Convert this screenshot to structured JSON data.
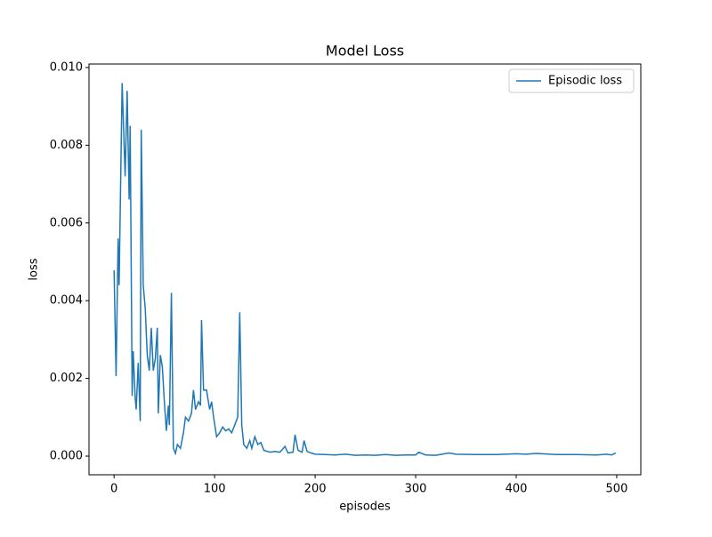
{
  "chart_data": {
    "type": "line",
    "title": "Model Loss",
    "x_label": "episodes",
    "y_label": "loss",
    "x": [
      0,
      2,
      4,
      5,
      8,
      11,
      13,
      15,
      16,
      18,
      19,
      21,
      22,
      24,
      26,
      27,
      29,
      31,
      33,
      35,
      37,
      39,
      41,
      43,
      44,
      46,
      48,
      50,
      52,
      54,
      55,
      57,
      59,
      61,
      63,
      66,
      69,
      71,
      74,
      77,
      79,
      81,
      84,
      86,
      87,
      89,
      92,
      95,
      97,
      99,
      102,
      105,
      108,
      111,
      114,
      117,
      120,
      123,
      125,
      127,
      129,
      132,
      135,
      137,
      140,
      143,
      146,
      149,
      155,
      160,
      165,
      170,
      173,
      178,
      180,
      183,
      187,
      189,
      192,
      196,
      200,
      210,
      220,
      230,
      240,
      250,
      260,
      270,
      280,
      290,
      300,
      303,
      310,
      320,
      333,
      340,
      360,
      380,
      400,
      410,
      420,
      440,
      460,
      480,
      490,
      495,
      499
    ],
    "series": [
      {
        "name": "Episodic loss",
        "color": "#1f77b4",
        "values": [
          0.00478,
          0.00206,
          0.0056,
          0.0044,
          0.0096,
          0.0072,
          0.0094,
          0.0066,
          0.0085,
          0.00155,
          0.0027,
          0.0015,
          0.0012,
          0.0024,
          0.0009,
          0.0084,
          0.0044,
          0.0038,
          0.0026,
          0.0022,
          0.0033,
          0.0022,
          0.0025,
          0.0033,
          0.0011,
          0.0026,
          0.0023,
          0.0014,
          0.00065,
          0.0013,
          0.0008,
          0.0042,
          0.0002,
          7e-05,
          0.0003,
          0.0002,
          0.0006,
          0.001,
          0.0009,
          0.0011,
          0.0017,
          0.0012,
          0.0014,
          0.0013,
          0.0035,
          0.0017,
          0.0017,
          0.0012,
          0.0014,
          0.001,
          0.0005,
          0.0006,
          0.00075,
          0.00065,
          0.0007,
          0.0006,
          0.0008,
          0.001,
          0.0037,
          0.0008,
          0.0003,
          0.0002,
          0.0004,
          0.0002,
          0.0005,
          0.0003,
          0.00035,
          0.00015,
          0.0001,
          0.00012,
          0.0001,
          0.00025,
          8e-05,
          0.0001,
          0.00055,
          0.00015,
          0.0001,
          0.0004,
          0.00012,
          8e-05,
          5e-05,
          4e-05,
          3e-05,
          5e-05,
          2e-05,
          3e-05,
          2e-05,
          4e-05,
          2e-05,
          3e-05,
          3e-05,
          0.0001,
          3e-05,
          2e-05,
          8e-05,
          5e-05,
          4e-05,
          4e-05,
          6e-05,
          5e-05,
          7e-05,
          4e-05,
          4e-05,
          3e-05,
          5e-05,
          3e-05,
          8e-05
        ]
      }
    ],
    "xlim": [
      -24.95,
      523.95
    ],
    "xticks": [
      0,
      100,
      200,
      300,
      400,
      500
    ],
    "ylim": [
      -0.00048,
      0.01009
    ],
    "yticks": [
      {
        "value": 0,
        "label": "0.000"
      },
      {
        "value": 0.002,
        "label": "0.002"
      },
      {
        "value": 0.004,
        "label": "0.004"
      },
      {
        "value": 0.006,
        "label": "0.006"
      },
      {
        "value": 0.008,
        "label": "0.008"
      },
      {
        "value": 0.01,
        "label": "0.010"
      }
    ],
    "legend": "upper right"
  }
}
